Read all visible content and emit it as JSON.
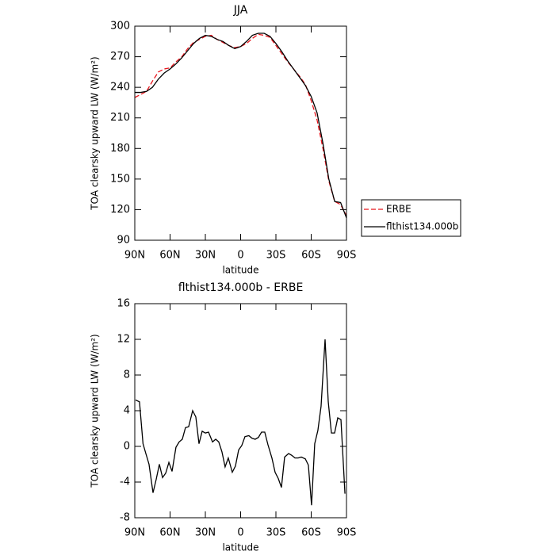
{
  "chart_data": [
    {
      "type": "line",
      "title": "JJA",
      "xlabel": "latitude",
      "ylabel": "TOA clearsky upward LW (W/m²)",
      "x": [
        90,
        85,
        80,
        75,
        70,
        65,
        60,
        55,
        50,
        45,
        40,
        35,
        30,
        25,
        20,
        15,
        10,
        5,
        0,
        -5,
        -10,
        -15,
        -20,
        -25,
        -30,
        -35,
        -40,
        -45,
        -50,
        -55,
        -60,
        -65,
        -70,
        -75,
        -80,
        -85,
        -90
      ],
      "series": [
        {
          "name": "ERBE",
          "color": "#e8141b",
          "linestyle": "dashed",
          "values": [
            230,
            233,
            236,
            246,
            255,
            258,
            259,
            265,
            270,
            278,
            284,
            287,
            290,
            291,
            287,
            284,
            281,
            279,
            280,
            283,
            288,
            292,
            291,
            289,
            281,
            273,
            265,
            258,
            251,
            243,
            227,
            208,
            180,
            148,
            128,
            125,
            114
          ]
        },
        {
          "name": "flthist134.000b",
          "color": "#000000",
          "linestyle": "solid",
          "values": [
            235,
            235,
            236,
            240,
            248,
            254,
            258,
            263,
            269,
            276,
            283,
            288,
            291,
            290,
            287,
            285,
            281,
            278,
            280,
            285,
            291,
            293,
            293,
            290,
            283,
            275,
            266,
            258,
            250,
            242,
            231,
            215,
            185,
            150,
            128,
            127,
            112
          ]
        }
      ],
      "xlim": [
        90,
        -90
      ],
      "xticks": [
        {
          "value": 90,
          "label": "90N"
        },
        {
          "value": 60,
          "label": "60N"
        },
        {
          "value": 30,
          "label": "30N"
        },
        0,
        {
          "value": -30,
          "label": "30S"
        },
        {
          "value": -60,
          "label": "60S"
        },
        {
          "value": -90,
          "label": "90S"
        }
      ],
      "ylim": [
        90,
        300
      ],
      "yticks": [
        90,
        120,
        150,
        180,
        210,
        240,
        270,
        300
      ],
      "legend": "outside right"
    },
    {
      "type": "line",
      "title": "flthist134.000b - ERBE",
      "xlabel": "latitude",
      "ylabel": "TOA clearsky upward LW (W/m²)",
      "x": [
        89.3,
        86,
        83,
        80.6,
        77.9,
        74.5,
        71.8,
        69.1,
        66.4,
        63.7,
        61,
        58.3,
        55,
        52.3,
        49.6,
        46.9,
        44.2,
        40.8,
        38.1,
        35.4,
        32.7,
        30,
        27.3,
        23.9,
        21.2,
        18.6,
        15.9,
        13.2,
        10.5,
        7.1,
        4.4,
        1.7,
        -1,
        -3.7,
        -7,
        -9.8,
        -12.4,
        -15.1,
        -17.8,
        -20.5,
        -23.2,
        -26.6,
        -29.3,
        -32,
        -34.7,
        -37.4,
        -40.8,
        -43.5,
        -46.2,
        -48.9,
        -51.6,
        -55,
        -57.6,
        -60.3,
        -63,
        -65.7,
        -68.4,
        -71.8,
        -74.5,
        -77.2,
        -79.9,
        -82.6,
        -85.3,
        -88.7
      ],
      "values": [
        5.2,
        5,
        0.3,
        -0.8,
        -2,
        -5.2,
        -3.7,
        -2,
        -3.5,
        -3,
        -1.8,
        -2.8,
        -0.1,
        0.5,
        0.8,
        2.1,
        2.2,
        4,
        3.3,
        0.3,
        1.7,
        1.5,
        1.6,
        0.5,
        0.8,
        0.5,
        -0.6,
        -2.3,
        -1.3,
        -2.9,
        -2.2,
        -0.4,
        0.1,
        1.1,
        1.2,
        0.9,
        0.8,
        1,
        1.6,
        1.6,
        0.2,
        -1.3,
        -2.9,
        -3.6,
        -4.6,
        -1.2,
        -0.8,
        -1,
        -1.3,
        -1.3,
        -1.2,
        -1.4,
        -2.1,
        -6.6,
        0.3,
        1.8,
        4.5,
        12,
        5,
        1.5,
        1.5,
        3.2,
        3,
        -5.3
      ],
      "color": "#000000",
      "xlim": [
        90,
        -90
      ],
      "xticks": [
        {
          "value": 90,
          "label": "90N"
        },
        {
          "value": 60,
          "label": "60N"
        },
        {
          "value": 30,
          "label": "30N"
        },
        0,
        {
          "value": -30,
          "label": "30S"
        },
        {
          "value": -60,
          "label": "60S"
        },
        {
          "value": -90,
          "label": "90S"
        }
      ],
      "ylim": [
        -8,
        16
      ],
      "yticks": [
        -8,
        -4,
        0,
        4,
        8,
        12,
        16
      ]
    }
  ]
}
